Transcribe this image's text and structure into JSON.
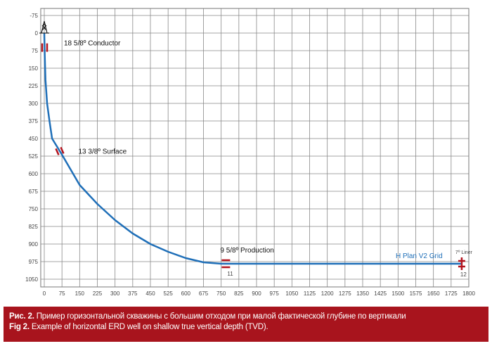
{
  "chart_data": {
    "type": "line",
    "title": "",
    "xlabel": "",
    "ylabel": "",
    "xlim": [
      -15,
      1800
    ],
    "ylim": [
      -105,
      1083
    ],
    "y_inverted": true,
    "grid": true,
    "x_ticks": [
      0,
      75,
      150,
      225,
      300,
      375,
      450,
      525,
      600,
      675,
      750,
      825,
      900,
      975,
      1050,
      1125,
      1200,
      1275,
      1350,
      1425,
      1500,
      1575,
      1650,
      1725,
      1800
    ],
    "y_ticks": [
      -75,
      0,
      75,
      150,
      225,
      300,
      375,
      450,
      525,
      600,
      675,
      750,
      825,
      900,
      975,
      1050
    ],
    "series": [
      {
        "name": "H Plan V2 Grid",
        "color": "#1f6fb8",
        "points": [
          [
            0,
            0
          ],
          [
            2,
            100
          ],
          [
            5,
            200
          ],
          [
            12,
            300
          ],
          [
            22,
            375
          ],
          [
            33,
            450
          ],
          [
            75,
            519
          ],
          [
            150,
            648
          ],
          [
            225,
            729
          ],
          [
            300,
            798
          ],
          [
            375,
            855
          ],
          [
            450,
            900
          ],
          [
            525,
            933
          ],
          [
            600,
            960
          ],
          [
            675,
            978
          ],
          [
            750,
            984
          ],
          [
            1770,
            984
          ]
        ]
      }
    ],
    "annotations": [
      {
        "label": "18 5/8º Conductor",
        "x": 0,
        "y": 62,
        "marker": "casing-vertical"
      },
      {
        "label": "13 3/8º Surface",
        "x": 70,
        "y": 505,
        "marker": "casing-slanted"
      },
      {
        "label": "9 5/8º Production",
        "x": 770,
        "y": 984,
        "marker": "casing-horizontal",
        "number": "11"
      },
      {
        "label": "7º Liner",
        "x": 1770,
        "y": 984,
        "marker": "liner-cross",
        "number": "12"
      }
    ],
    "marker_color": "#b3141e",
    "rig_icon": "drilling-rig-icon"
  },
  "caption": {
    "ru_prefix": "Рис. 2.",
    "ru_text": " Пример горизонтальной скважины с большим отходом при малой фактической глубине по вертикали",
    "en_prefix": "Fig 2.",
    "en_text": " Example of horizontal ERD well on shallow true vertical depth (TVD).",
    "background": "#a8141d"
  }
}
